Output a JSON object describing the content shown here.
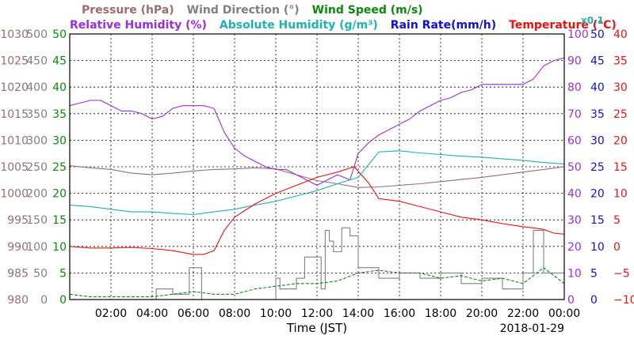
{
  "chart_data": {
    "type": "line",
    "legend": {
      "row1": [
        {
          "key": "pressure",
          "label": "Pressure (hPa)",
          "color": "#9c6d6d"
        },
        {
          "key": "wind_direction",
          "label": "Wind Direction (°)",
          "color": "#808080"
        },
        {
          "key": "wind_speed",
          "label": "Wind Speed (m/s)",
          "color": "#0a8a0a"
        }
      ],
      "row2": [
        {
          "key": "relative_humidity",
          "label": "Relative Humidity (%)",
          "color": "#9a2de6"
        },
        {
          "key": "absolute_humidity",
          "label": "Absolute Humidity (g/m³)",
          "color": "#1cb3b0"
        },
        {
          "key": "rain_rate",
          "label": "Rain Rate(mm/h)",
          "color": "#1010d8"
        },
        {
          "key": "temperature",
          "label": "Temperature (°C)",
          "color": "#ee1111"
        }
      ],
      "rain_multiplier": "x0.1"
    },
    "xlabel": "Time (JST)",
    "date_label": "2018-01-29",
    "x_ticks": [
      "02:00",
      "04:00",
      "06:00",
      "08:00",
      "10:00",
      "12:00",
      "14:00",
      "16:00",
      "18:00",
      "20:00",
      "22:00",
      "00:00"
    ],
    "x_range_hours": [
      0,
      24
    ],
    "grid": true,
    "axes": {
      "pressure": {
        "color": "#9c6d6d",
        "ylim": [
          980,
          1030
        ],
        "ticks": [
          "980",
          "985",
          "990",
          "995",
          "1000",
          "1005",
          "1010",
          "1015",
          "1020",
          "1025",
          "1030"
        ]
      },
      "wind_direction": {
        "color": "#808080",
        "ylim": [
          0,
          500
        ],
        "ticks": [
          "0",
          "50",
          "100",
          "150",
          "200",
          "250",
          "300",
          "350",
          "400",
          "450",
          "500"
        ]
      },
      "wind_speed": {
        "color": "#0a8a0a",
        "ylim": [
          0,
          50
        ],
        "ticks": [
          "0",
          "5",
          "10",
          "15",
          "20",
          "25",
          "30",
          "35",
          "40",
          "45",
          "50"
        ]
      },
      "relative_humidity": {
        "color": "#9a2de6",
        "ylim": [
          0,
          100
        ],
        "ticks": [
          "0",
          "10",
          "20",
          "30",
          "40",
          "50",
          "60",
          "70",
          "80",
          "90",
          "100"
        ]
      },
      "rain_rate": {
        "color": "#1010d8",
        "ylim": [
          0,
          50
        ],
        "ticks": [
          "0",
          "5",
          "10",
          "15",
          "20",
          "25",
          "30",
          "35",
          "40",
          "45",
          "50"
        ]
      },
      "temperature": {
        "color": "#ee1111",
        "ylim": [
          -10,
          40
        ],
        "ticks": [
          "−10",
          "−5",
          "0",
          "5",
          "10",
          "15",
          "20",
          "25",
          "30",
          "35",
          "40"
        ]
      }
    },
    "series": [
      {
        "name": "Pressure (hPa)",
        "axis": "pressure",
        "style": "solid",
        "x": [
          0,
          1,
          2,
          3,
          4,
          5,
          6,
          7,
          8,
          9,
          10,
          11,
          12,
          13,
          14,
          15,
          16,
          17,
          18,
          19,
          20,
          21,
          22,
          23,
          24
        ],
        "y": [
          1005.2,
          1004.8,
          1004.5,
          1003.8,
          1003.5,
          1003.8,
          1004.2,
          1004.5,
          1004.6,
          1004.8,
          1004.6,
          1003.5,
          1002.4,
          1001.8,
          1001.1,
          1001.2,
          1001.5,
          1001.8,
          1002.2,
          1002.6,
          1003.0,
          1003.5,
          1004.0,
          1004.5,
          1005.0
        ]
      },
      {
        "name": "Relative Humidity (%)",
        "axis": "relative_humidity",
        "style": "solid",
        "x": [
          0,
          0.5,
          1,
          1.5,
          2,
          2.5,
          3,
          3.5,
          4,
          4.5,
          5,
          5.5,
          6,
          6.5,
          7,
          7.5,
          8,
          8.5,
          9,
          9.5,
          10,
          10.5,
          11,
          11.5,
          12,
          12.5,
          13,
          13.3,
          13.6,
          14,
          14.5,
          15,
          15.5,
          16,
          16.5,
          17,
          17.5,
          18,
          18.5,
          19,
          19.5,
          20,
          20.5,
          21,
          21.5,
          22,
          22.5,
          23,
          23.5,
          24
        ],
        "y": [
          73,
          74,
          75,
          75,
          73,
          71,
          71,
          70,
          68,
          69,
          72,
          73,
          73,
          73,
          72,
          63,
          57,
          54,
          52,
          50,
          49,
          49,
          47,
          45,
          43,
          45,
          47,
          46,
          45,
          55,
          59,
          62,
          64,
          66,
          68,
          71,
          73,
          75,
          76,
          78,
          79,
          81,
          81,
          81,
          81,
          81,
          83,
          88,
          90,
          91
        ]
      },
      {
        "name": "Absolute Humidity (g/m³)",
        "axis": "wind_speed",
        "style": "solid",
        "x": [
          0,
          1,
          2,
          3,
          4,
          5,
          6,
          7,
          8,
          9,
          10,
          11,
          12,
          13,
          14,
          15,
          16,
          17,
          18,
          19,
          20,
          21,
          22,
          23,
          24
        ],
        "y": [
          17.8,
          17.5,
          17.0,
          16.5,
          16.5,
          16.2,
          16.0,
          16.5,
          17.0,
          17.8,
          18.5,
          19.5,
          20.5,
          21.8,
          23.0,
          27.8,
          28.0,
          27.6,
          27.3,
          27.0,
          26.8,
          26.5,
          26.2,
          25.8,
          25.5
        ]
      },
      {
        "name": "Temperature (°C)",
        "axis": "temperature",
        "style": "solid",
        "x": [
          0,
          1,
          2,
          3,
          4,
          5,
          6,
          6.5,
          7,
          7.5,
          8,
          9,
          10,
          11,
          12,
          13,
          13.8,
          14.5,
          15,
          16,
          17,
          18,
          19,
          20,
          21,
          22,
          22.5,
          23,
          23.5,
          24
        ],
        "y": [
          0,
          -0.3,
          -0.3,
          -0.2,
          -0.4,
          -0.8,
          -1.5,
          -1.5,
          -0.8,
          3,
          5.5,
          8,
          10,
          11.5,
          13,
          14,
          15,
          12,
          9,
          8.5,
          7.5,
          6.5,
          5.5,
          5,
          4.3,
          3.7,
          3.5,
          3.2,
          2.5,
          2.3
        ]
      },
      {
        "name": "Wind Direction (°)",
        "axis": "wind_direction",
        "style": "solid",
        "x": [
          0,
          4.2,
          4.2,
          5,
          5,
          5.8,
          5.8,
          6.4,
          6.4,
          10,
          10,
          10.2,
          10.2,
          11,
          11,
          11.4,
          11.4,
          12.2,
          12.2,
          12.4,
          12.4,
          12.6,
          12.6,
          12.8,
          12.8,
          13.2,
          13.2,
          13.6,
          13.6,
          14,
          14,
          15,
          15,
          16,
          16,
          17,
          17,
          18,
          18,
          19,
          19,
          20,
          20,
          21,
          21,
          22,
          22,
          22.5,
          22.5,
          23,
          23,
          24
        ],
        "y": [
          0,
          0,
          20,
          20,
          10,
          10,
          60,
          60,
          0,
          0,
          40,
          40,
          20,
          20,
          40,
          40,
          80,
          80,
          20,
          20,
          130,
          130,
          110,
          110,
          90,
          90,
          135,
          135,
          120,
          120,
          60,
          60,
          40,
          40,
          50,
          50,
          40,
          40,
          50,
          50,
          30,
          30,
          40,
          40,
          20,
          20,
          50,
          50,
          130,
          130,
          50,
          50
        ]
      },
      {
        "name": "Wind Speed (m/s)",
        "axis": "wind_speed",
        "style": "dashed",
        "x": [
          0,
          1,
          2,
          3,
          4,
          5,
          6,
          7,
          8,
          9,
          10,
          11,
          12,
          13,
          14,
          15,
          16,
          17,
          18,
          19,
          20,
          21,
          22,
          23,
          24
        ],
        "y": [
          1,
          0.5,
          0.5,
          0.5,
          0.5,
          1,
          1.5,
          1,
          1,
          2,
          2.5,
          3,
          3,
          3.5,
          5,
          5.5,
          5,
          5,
          4,
          4.5,
          3.5,
          4,
          3,
          6,
          3
        ]
      },
      {
        "name": "Rain Rate(mm/h)",
        "axis": "rain_rate",
        "style": "solid",
        "x": [
          0,
          24
        ],
        "y": [
          0,
          0
        ]
      }
    ]
  }
}
